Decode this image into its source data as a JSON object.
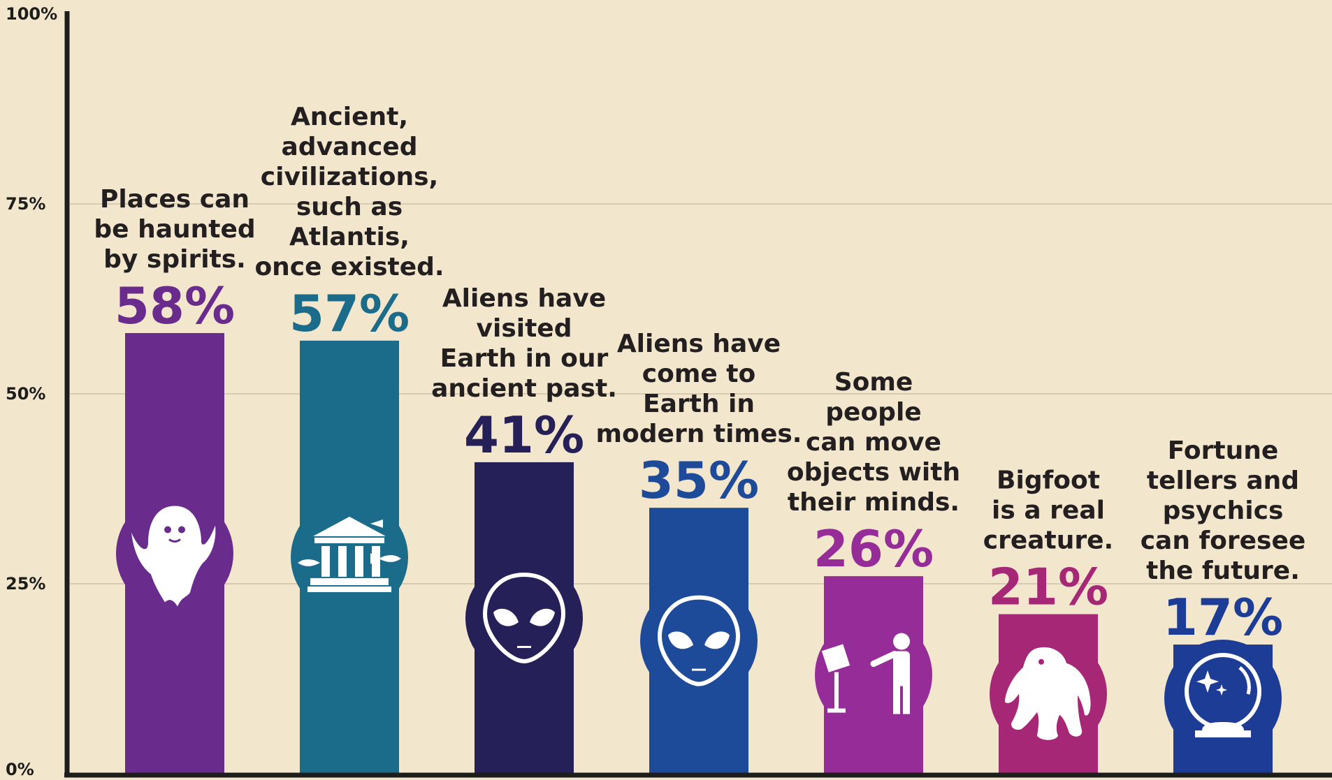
{
  "chart_data": {
    "type": "bar",
    "ylim": [
      0,
      100
    ],
    "yticks": [
      {
        "value": 0,
        "label": "0%"
      },
      {
        "value": 25,
        "label": "25%"
      },
      {
        "value": 50,
        "label": "50%"
      },
      {
        "value": 75,
        "label": "75%"
      },
      {
        "value": 100,
        "label": "100%"
      }
    ],
    "grid": true,
    "categories": [
      "Places can be haunted by spirits.",
      "Ancient, advanced civilizations, such as Atlantis, once existed.",
      "Aliens have visited Earth in our ancient past.",
      "Aliens have come to Earth in modern times.",
      "Some people can move objects with their minds.",
      "Bigfoot is a real creature.",
      "Fortune tellers and psychics can foresee the future."
    ],
    "values": [
      58,
      57,
      41,
      35,
      26,
      21,
      17
    ],
    "value_labels": [
      "58%",
      "57%",
      "41%",
      "35%",
      "26%",
      "21%",
      "17%"
    ],
    "label_lines": [
      [
        "Places can",
        "be haunted",
        "by spirits."
      ],
      [
        "Ancient,",
        "advanced",
        "civilizations,",
        "such as",
        "Atlantis,",
        "once existed."
      ],
      [
        "Aliens have",
        "visited",
        "Earth in our",
        "ancient past."
      ],
      [
        "Aliens have",
        "come to",
        "Earth in",
        "modern times."
      ],
      [
        "Some",
        "people",
        "can move",
        "objects with",
        "their minds."
      ],
      [
        "Bigfoot",
        "is a real",
        "creature."
      ],
      [
        "Fortune",
        "tellers and",
        "psychics",
        "can foresee",
        "the future."
      ]
    ],
    "colors": [
      "#6a2c8c",
      "#1b6b8a",
      "#262058",
      "#1e4a9a",
      "#952c97",
      "#a52776",
      "#1d3c95"
    ],
    "value_colors": [
      "#6a2c8c",
      "#1b6b8a",
      "#262058",
      "#1e4a9a",
      "#952c97",
      "#a52776",
      "#1d3c95"
    ],
    "icons": [
      "ghost-icon",
      "temple-with-fish-icon",
      "alien-head-icon",
      "alien-head-icon",
      "telekinesis-icon",
      "bigfoot-icon",
      "crystal-ball-icon"
    ]
  }
}
